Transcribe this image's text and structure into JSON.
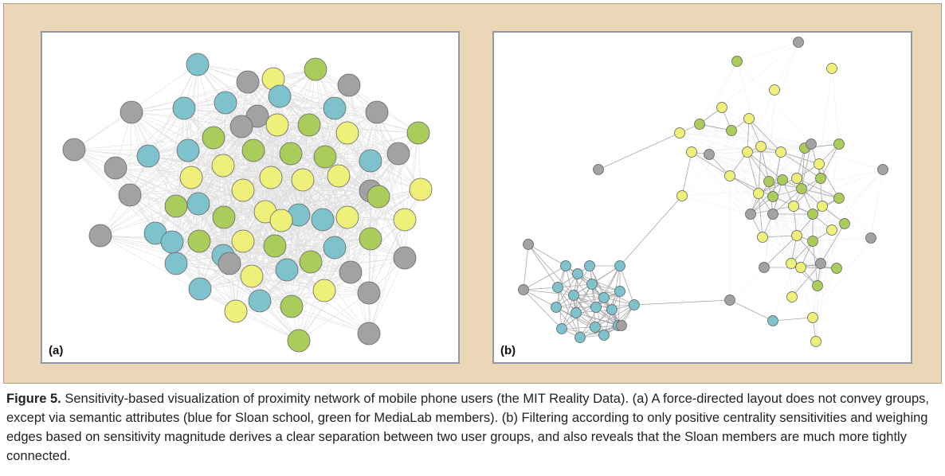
{
  "figure": {
    "label": "Figure 5.",
    "caption": "Sensitivity-based visualization of proximity network of mobile phone users (the MIT Reality Data). (a) A force-directed layout does not convey groups, except via semantic attributes (blue for Sloan school, green for MediaLab members). (b) Filtering according to only positive centrality sensitivities and weighing edges based on sensitivity magnitude derives a clear separation between two user groups, and also reveals that the Sloan members are much more tightly connected."
  },
  "colors": {
    "frame_bg": "#ecd6b8",
    "sloan_blue": "#7dc2cc",
    "medialab_green": "#a9cc5b",
    "light_yellow": "#eef07a",
    "gray": "#a2a2a2"
  },
  "panels": [
    {
      "label": "(a)"
    },
    {
      "label": "(b)"
    }
  ]
}
